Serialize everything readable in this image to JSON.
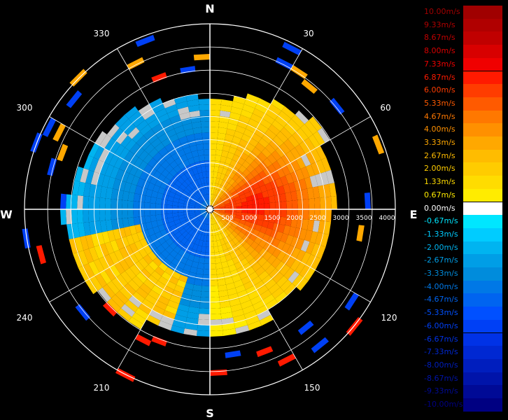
{
  "chart_data": {
    "type": "heatmap",
    "subtype": "polar-radial-velocity",
    "compass": {
      "north": "N",
      "east": "E",
      "south": "S",
      "west": "W"
    },
    "azimuth_labels": [
      "30",
      "60",
      "120",
      "150",
      "210",
      "240",
      "300",
      "330"
    ],
    "range_labels": [
      "500",
      "1000",
      "1500",
      "2000",
      "2500",
      "3000",
      "3500",
      "4000"
    ],
    "range_max": 4200,
    "legend": {
      "entries": [
        {
          "label": "10.00m/s",
          "value": 10.0,
          "color": "#a00000"
        },
        {
          "label": "9.33m/s",
          "value": 9.33,
          "color": "#b00000"
        },
        {
          "label": "8.67m/s",
          "value": 8.67,
          "color": "#c00000"
        },
        {
          "label": "8.00m/s",
          "value": 8.0,
          "color": "#d80000"
        },
        {
          "label": "7.33m/s",
          "value": 7.33,
          "color": "#f00000"
        },
        {
          "label": "6.87m/s",
          "value": 6.87,
          "color": "#ff1a00"
        },
        {
          "label": "6.00m/s",
          "value": 6.0,
          "color": "#ff3c00"
        },
        {
          "label": "5.33m/s",
          "value": 5.33,
          "color": "#ff5a00"
        },
        {
          "label": "4.67m/s",
          "value": 4.67,
          "color": "#ff7800"
        },
        {
          "label": "4.00m/s",
          "value": 4.0,
          "color": "#ff9000"
        },
        {
          "label": "3.33m/s",
          "value": 3.33,
          "color": "#ffa800"
        },
        {
          "label": "2.67m/s",
          "value": 2.67,
          "color": "#ffbc00"
        },
        {
          "label": "2.00m/s",
          "value": 2.0,
          "color": "#ffcc00"
        },
        {
          "label": "1.33m/s",
          "value": 1.33,
          "color": "#ffdc00"
        },
        {
          "label": "0.67m/s",
          "value": 0.67,
          "color": "#ffec00"
        },
        {
          "label": "0.00m/s",
          "value": 0.0,
          "color": "#ffffff"
        },
        {
          "label": "-0.67m/s",
          "value": -0.67,
          "color": "#00e6ff"
        },
        {
          "label": "-1.33m/s",
          "value": -1.33,
          "color": "#00ccff"
        },
        {
          "label": "-2.00m/s",
          "value": -2.0,
          "color": "#00b4f0"
        },
        {
          "label": "-2.67m/s",
          "value": -2.67,
          "color": "#009ee6"
        },
        {
          "label": "-3.33m/s",
          "value": -3.33,
          "color": "#008cdc"
        },
        {
          "label": "-4.00m/s",
          "value": -4.0,
          "color": "#0078e6"
        },
        {
          "label": "-4.67m/s",
          "value": -4.67,
          "color": "#0064f0"
        },
        {
          "label": "-5.33m/s",
          "value": -5.33,
          "color": "#0050ff"
        },
        {
          "label": "-6.00m/s",
          "value": -6.0,
          "color": "#0040f5"
        },
        {
          "label": "-6.67m/s",
          "value": -6.67,
          "color": "#0032e6"
        },
        {
          "label": "-7.33m/s",
          "value": -7.33,
          "color": "#0028d2"
        },
        {
          "label": "-8.00m/s",
          "value": -8.0,
          "color": "#001ebe"
        },
        {
          "label": "-8.67m/s",
          "value": -8.67,
          "color": "#0014aa"
        },
        {
          "label": "-9.33m/s",
          "value": -9.33,
          "color": "#000a96"
        },
        {
          "label": "-10.00m/s",
          "value": -10.0,
          "color": "#000082"
        }
      ]
    },
    "missing_color": "#c8c8c8",
    "grid": true
  }
}
